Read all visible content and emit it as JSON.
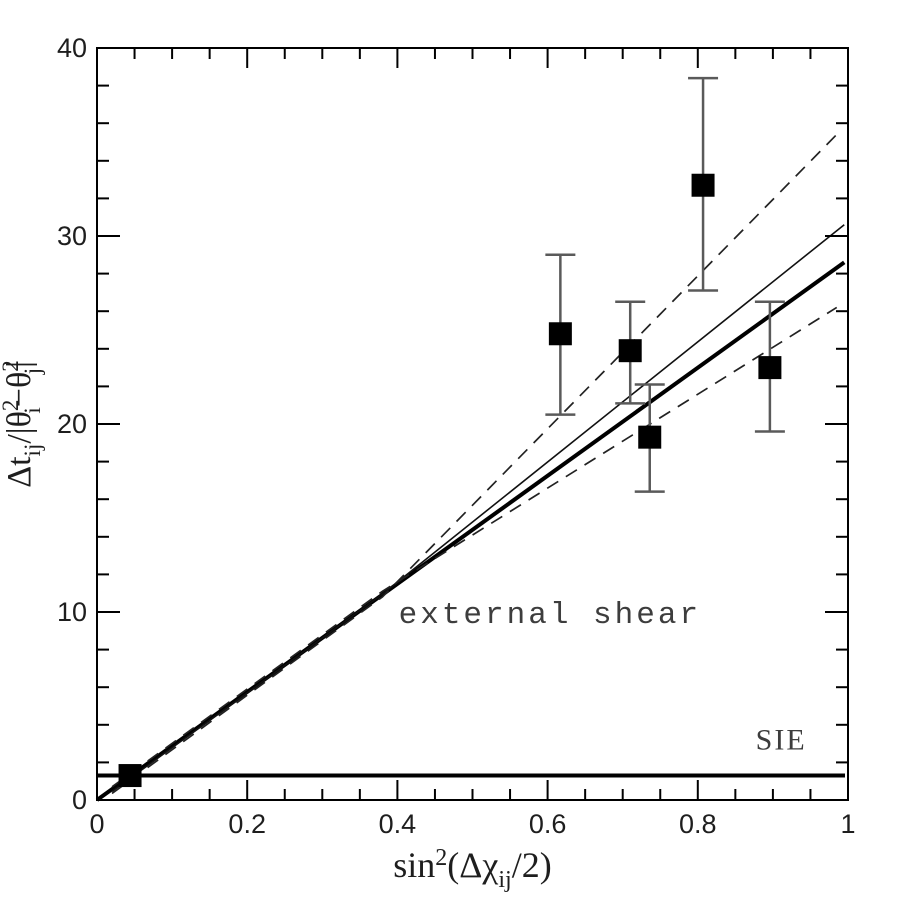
{
  "figure": {
    "background": "#ffffff",
    "colors": {
      "frame": "#000000",
      "model_line": "#000000",
      "fit_line": "#111111",
      "dashed_line": "#222222",
      "error_bar": "#5a5a5a",
      "tick_text": "#1e1e1e",
      "annotation_text": "#3d3d3d",
      "marker": "#000000"
    }
  },
  "chart_data": {
    "type": "scatter",
    "title": "",
    "xlabel_plain": "sin^2(Delta chi_ij / 2)",
    "ylabel_plain": "Delta t_ij / |theta_i^2 - theta_j^2|",
    "xlabel_parts": [
      {
        "t": "sin"
      },
      {
        "t": "2",
        "pos": "sup"
      },
      {
        "t": "(Δχ"
      },
      {
        "t": "ij",
        "pos": "sub"
      },
      {
        "t": "/2)"
      }
    ],
    "ylabel_parts": [
      {
        "t": "Δt"
      },
      {
        "t": "ij",
        "pos": "sub"
      },
      {
        "t": "/|θ"
      },
      {
        "t": "2",
        "pos": "sup"
      },
      {
        "t": "i",
        "pos": "substack"
      },
      {
        "t": "−θ"
      },
      {
        "t": "2",
        "pos": "sup"
      },
      {
        "t": "j",
        "pos": "substack"
      },
      {
        "t": "|"
      }
    ],
    "xlim": [
      0,
      1
    ],
    "ylim": [
      0,
      40
    ],
    "x_major_ticks": [
      {
        "v": 0,
        "label": "0"
      },
      {
        "v": 0.2,
        "label": "0.2"
      },
      {
        "v": 0.4,
        "label": "0.4"
      },
      {
        "v": 0.6,
        "label": "0.6"
      },
      {
        "v": 0.8,
        "label": "0.8"
      },
      {
        "v": 1,
        "label": "1"
      }
    ],
    "x_minor_step": 0.05,
    "y_major_ticks": [
      {
        "v": 0,
        "label": "0"
      },
      {
        "v": 10,
        "label": "10"
      },
      {
        "v": 20,
        "label": "20"
      },
      {
        "v": 30,
        "label": "30"
      },
      {
        "v": 40,
        "label": "40"
      }
    ],
    "y_minor_step": 2,
    "grid": false,
    "legend": "none",
    "marker": {
      "shape": "square",
      "size": 23,
      "color": "#000000"
    },
    "points": [
      {
        "x": 0.044,
        "y": 1.3,
        "ylo": 1.3,
        "yhi": 1.3
      },
      {
        "x": 0.617,
        "y": 24.8,
        "ylo": 20.5,
        "yhi": 29.0
      },
      {
        "x": 0.71,
        "y": 23.9,
        "ylo": 21.1,
        "yhi": 26.5
      },
      {
        "x": 0.736,
        "y": 19.3,
        "ylo": 16.4,
        "yhi": 22.1
      },
      {
        "x": 0.807,
        "y": 32.7,
        "ylo": 27.1,
        "yhi": 38.4
      },
      {
        "x": 0.896,
        "y": 23.0,
        "ylo": 19.6,
        "yhi": 26.5
      }
    ],
    "lines": [
      {
        "name": "external-shear-model",
        "style": "thick",
        "points": [
          [
            0,
            0
          ],
          [
            0.995,
            28.6
          ]
        ]
      },
      {
        "name": "best-fit",
        "style": "thin",
        "points": [
          [
            0.02,
            0.45
          ],
          [
            0.38,
            10.95
          ],
          [
            0.995,
            30.6
          ]
        ]
      },
      {
        "name": "fit-upper-uncertainty",
        "style": "dashed",
        "points": [
          [
            0.02,
            0.35
          ],
          [
            0.38,
            10.8
          ],
          [
            0.985,
            35.4
          ]
        ]
      },
      {
        "name": "fit-lower-uncertainty",
        "style": "dashed",
        "points": [
          [
            0.02,
            0.7
          ],
          [
            0.38,
            11.1
          ],
          [
            0.985,
            26.2
          ]
        ]
      },
      {
        "name": "sie-model",
        "style": "thick",
        "points": [
          [
            0,
            1.3
          ],
          [
            0.996,
            1.3
          ]
        ]
      }
    ],
    "annotations": [
      {
        "text": "external shear",
        "x": 0.603,
        "y": 9.85,
        "style": "typewriter",
        "size": 31
      },
      {
        "text": "SIE",
        "x": 0.911,
        "y": 3.05,
        "style": "roman",
        "size": 30
      }
    ]
  }
}
